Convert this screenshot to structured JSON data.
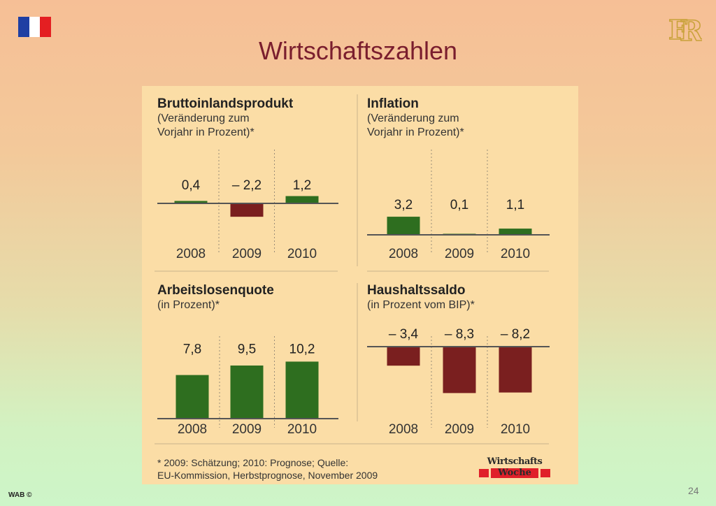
{
  "slide": {
    "title": "Wirtschaftszahlen",
    "footer_left": "WAB ©",
    "page_number": "24",
    "flag_colors": [
      "#1f3fa3",
      "#ffffff",
      "#e41f22"
    ],
    "logo_text": "R"
  },
  "colors": {
    "positive": "#2e6e1f",
    "negative": "#7a1f1f",
    "panel": "#fbdda6"
  },
  "chart_data": [
    {
      "type": "bar",
      "title": "Bruttoinlandsprodukt",
      "subtitle": [
        "(Veränderung zum",
        "Vorjahr in Prozent)*"
      ],
      "categories": [
        "2008",
        "2009",
        "2010"
      ],
      "values": [
        0.4,
        -2.2,
        1.2
      ],
      "labels": [
        "0,4",
        "– 2,2",
        "1,2"
      ],
      "ylim": [
        -2.5,
        3.5
      ]
    },
    {
      "type": "bar",
      "title": "Inflation",
      "subtitle": [
        "(Veränderung zum",
        "Vorjahr in Prozent)*"
      ],
      "categories": [
        "2008",
        "2009",
        "2010"
      ],
      "values": [
        3.2,
        0.1,
        1.1
      ],
      "labels": [
        "3,2",
        "0,1",
        "1,1"
      ],
      "ylim": [
        0,
        3.5
      ]
    },
    {
      "type": "bar",
      "title": "Arbeitslosenquote",
      "subtitle": [
        "(in Prozent)*"
      ],
      "categories": [
        "2008",
        "2009",
        "2010"
      ],
      "values": [
        7.8,
        9.5,
        10.2
      ],
      "labels": [
        "7,8",
        "9,5",
        "10,2"
      ],
      "ylim": [
        0,
        12
      ]
    },
    {
      "type": "bar",
      "title": "Haushaltssaldo",
      "subtitle": [
        "(in Prozent vom BIP)*"
      ],
      "categories": [
        "2008",
        "2009",
        "2010"
      ],
      "values": [
        -3.4,
        -8.3,
        -8.2
      ],
      "labels": [
        "– 3,4",
        "– 8,3",
        "– 8,2"
      ],
      "ylim": [
        -9,
        0
      ]
    }
  ],
  "footnote": [
    "* 2009: Schätzung; 2010: Prognose; Quelle:",
    "EU-Kommission, Herbstprognose, November 2009"
  ],
  "brand": {
    "line1": "Wirtschafts",
    "line2": "Woche"
  }
}
